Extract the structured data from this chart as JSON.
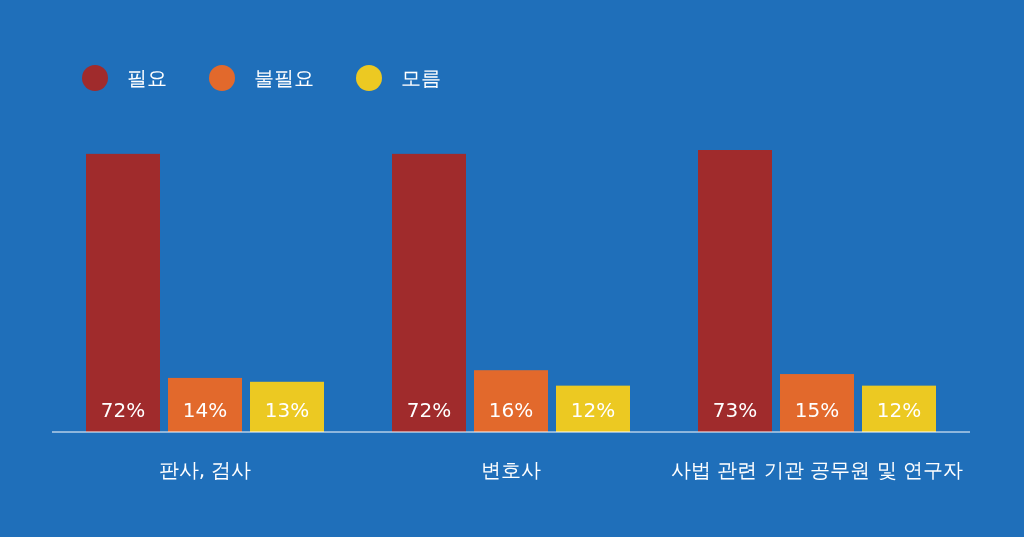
{
  "chart_data": {
    "type": "bar",
    "categories": [
      "판사, 검사",
      "변호사",
      "사법 관련 기관 공무원 및 연구자"
    ],
    "series": [
      {
        "name": "필요",
        "color": "#a02b2c",
        "values": [
          72,
          72,
          73
        ],
        "value_labels": [
          "72%",
          "72%",
          "73%"
        ]
      },
      {
        "name": "불필요",
        "color": "#e2692c",
        "values": [
          14,
          16,
          15
        ],
        "value_labels": [
          "14%",
          "16%",
          "15%"
        ]
      },
      {
        "name": "모름",
        "color": "#ecc922",
        "values": [
          13,
          12,
          12
        ],
        "value_labels": [
          "13%",
          "12%",
          "12%"
        ]
      }
    ],
    "legend": "top left"
  }
}
